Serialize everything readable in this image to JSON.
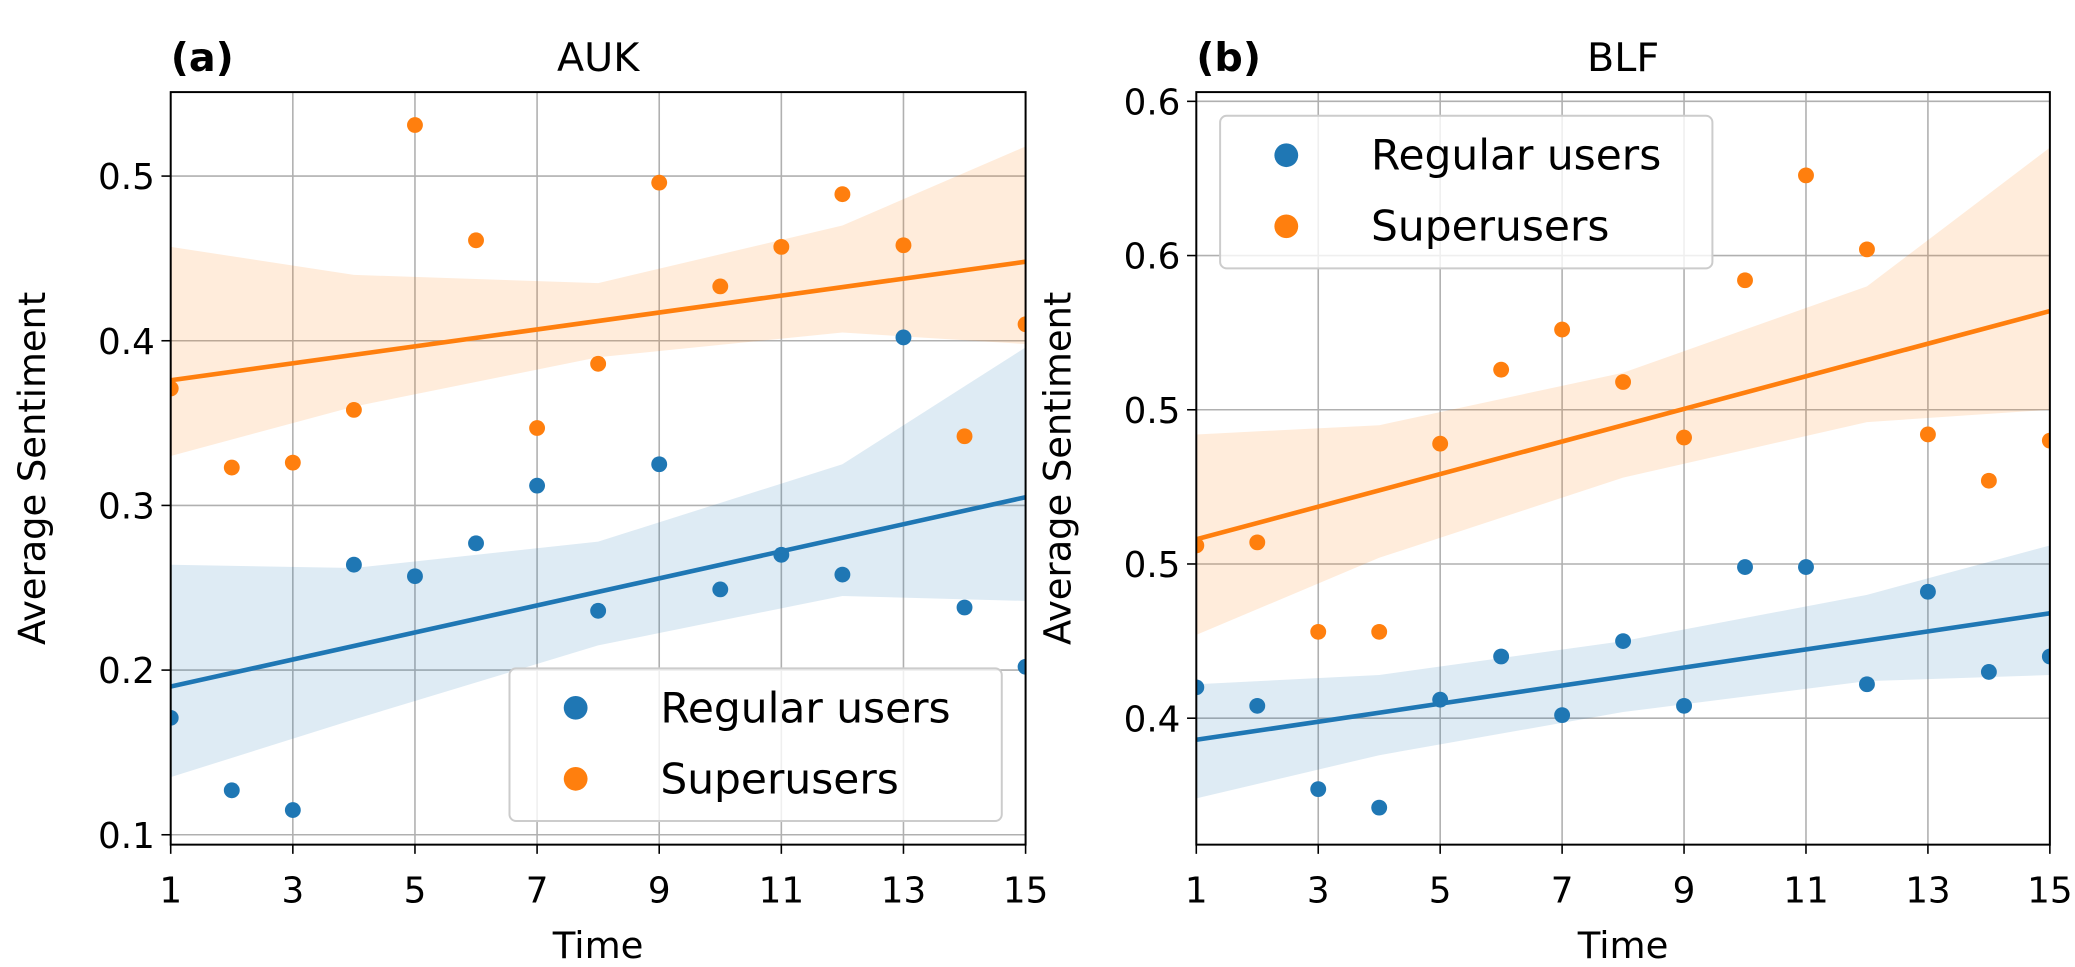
{
  "chart_data": [
    {
      "type": "scatter",
      "label": "(a)",
      "title": "AUK",
      "x_label": "Time",
      "y_label": "Average Sentiment",
      "xlim": [
        1,
        15
      ],
      "xticks": [
        1,
        3,
        5,
        7,
        9,
        11,
        13,
        15
      ],
      "ylim": [
        0.094,
        0.551
      ],
      "yticks": [
        0.1,
        0.2,
        0.3,
        0.4,
        0.5
      ],
      "grid": true,
      "legend_loc": "lower right",
      "x": [
        1,
        2,
        3,
        4,
        5,
        6,
        7,
        8,
        9,
        10,
        11,
        12,
        13,
        14,
        15
      ],
      "series": [
        {
          "name": "Regular users",
          "color": "#1f77b4",
          "values": [
            0.171,
            0.127,
            0.115,
            0.264,
            0.257,
            0.277,
            0.312,
            0.236,
            0.325,
            0.249,
            0.27,
            0.258,
            0.402,
            0.238,
            0.202
          ],
          "fit": {
            "x": [
              1,
              15
            ],
            "y": [
              0.19,
              0.305
            ]
          },
          "band": {
            "x": [
              1,
              4,
              8,
              12,
              15
            ],
            "lower": [
              0.135,
              0.17,
              0.215,
              0.245,
              0.242
            ],
            "upper": [
              0.264,
              0.262,
              0.278,
              0.325,
              0.396
            ]
          }
        },
        {
          "name": "Superusers",
          "color": "#ff7f0e",
          "values": [
            0.371,
            0.323,
            0.326,
            0.358,
            0.531,
            0.461,
            0.347,
            0.386,
            0.496,
            0.433,
            0.457,
            0.489,
            0.458,
            0.342,
            0.41
          ],
          "fit": {
            "x": [
              1,
              15
            ],
            "y": [
              0.376,
              0.448
            ]
          },
          "band": {
            "x": [
              1,
              4,
              8,
              12,
              15
            ],
            "lower": [
              0.33,
              0.36,
              0.39,
              0.405,
              0.398
            ],
            "upper": [
              0.457,
              0.44,
              0.435,
              0.47,
              0.518
            ]
          }
        }
      ]
    },
    {
      "type": "scatter",
      "label": "(b)",
      "title": "BLF",
      "x_label": "Time",
      "y_label": "Average Sentiment",
      "xlim": [
        1,
        15
      ],
      "xticks": [
        1,
        3,
        5,
        7,
        9,
        11,
        13,
        15
      ],
      "ylim": [
        0.359,
        0.603
      ],
      "yticks": [
        0.4,
        {
          "value": 0.45,
          "label": "0.5"
        },
        0.5,
        {
          "value": 0.55,
          "label": "0.6"
        },
        0.6
      ],
      "grid": true,
      "legend_loc": "upper left",
      "x": [
        1,
        2,
        3,
        4,
        5,
        6,
        7,
        8,
        9,
        10,
        11,
        12,
        13,
        14,
        15
      ],
      "series": [
        {
          "name": "Regular users",
          "color": "#1f77b4",
          "values": [
            0.41,
            0.404,
            0.377,
            0.371,
            0.406,
            0.42,
            0.401,
            0.425,
            0.404,
            0.449,
            0.449,
            0.411,
            0.441,
            0.415,
            0.42
          ],
          "fit": {
            "x": [
              1,
              15
            ],
            "y": [
              0.393,
              0.434
            ]
          },
          "band": {
            "x": [
              1,
              4,
              8,
              12,
              15
            ],
            "lower": [
              0.374,
              0.388,
              0.402,
              0.412,
              0.414
            ],
            "upper": [
              0.411,
              0.414,
              0.425,
              0.44,
              0.456
            ]
          }
        },
        {
          "name": "Superusers",
          "color": "#ff7f0e",
          "values": [
            0.456,
            0.457,
            0.428,
            0.428,
            0.489,
            0.513,
            0.526,
            0.509,
            0.491,
            0.542,
            0.576,
            0.552,
            0.492,
            0.477,
            0.49
          ],
          "fit": {
            "x": [
              1,
              15
            ],
            "y": [
              0.458,
              0.532
            ]
          },
          "band": {
            "x": [
              1,
              4,
              8,
              12,
              15
            ],
            "lower": [
              0.427,
              0.452,
              0.478,
              0.496,
              0.5
            ],
            "upper": [
              0.492,
              0.495,
              0.512,
              0.54,
              0.585
            ]
          }
        }
      ]
    }
  ]
}
